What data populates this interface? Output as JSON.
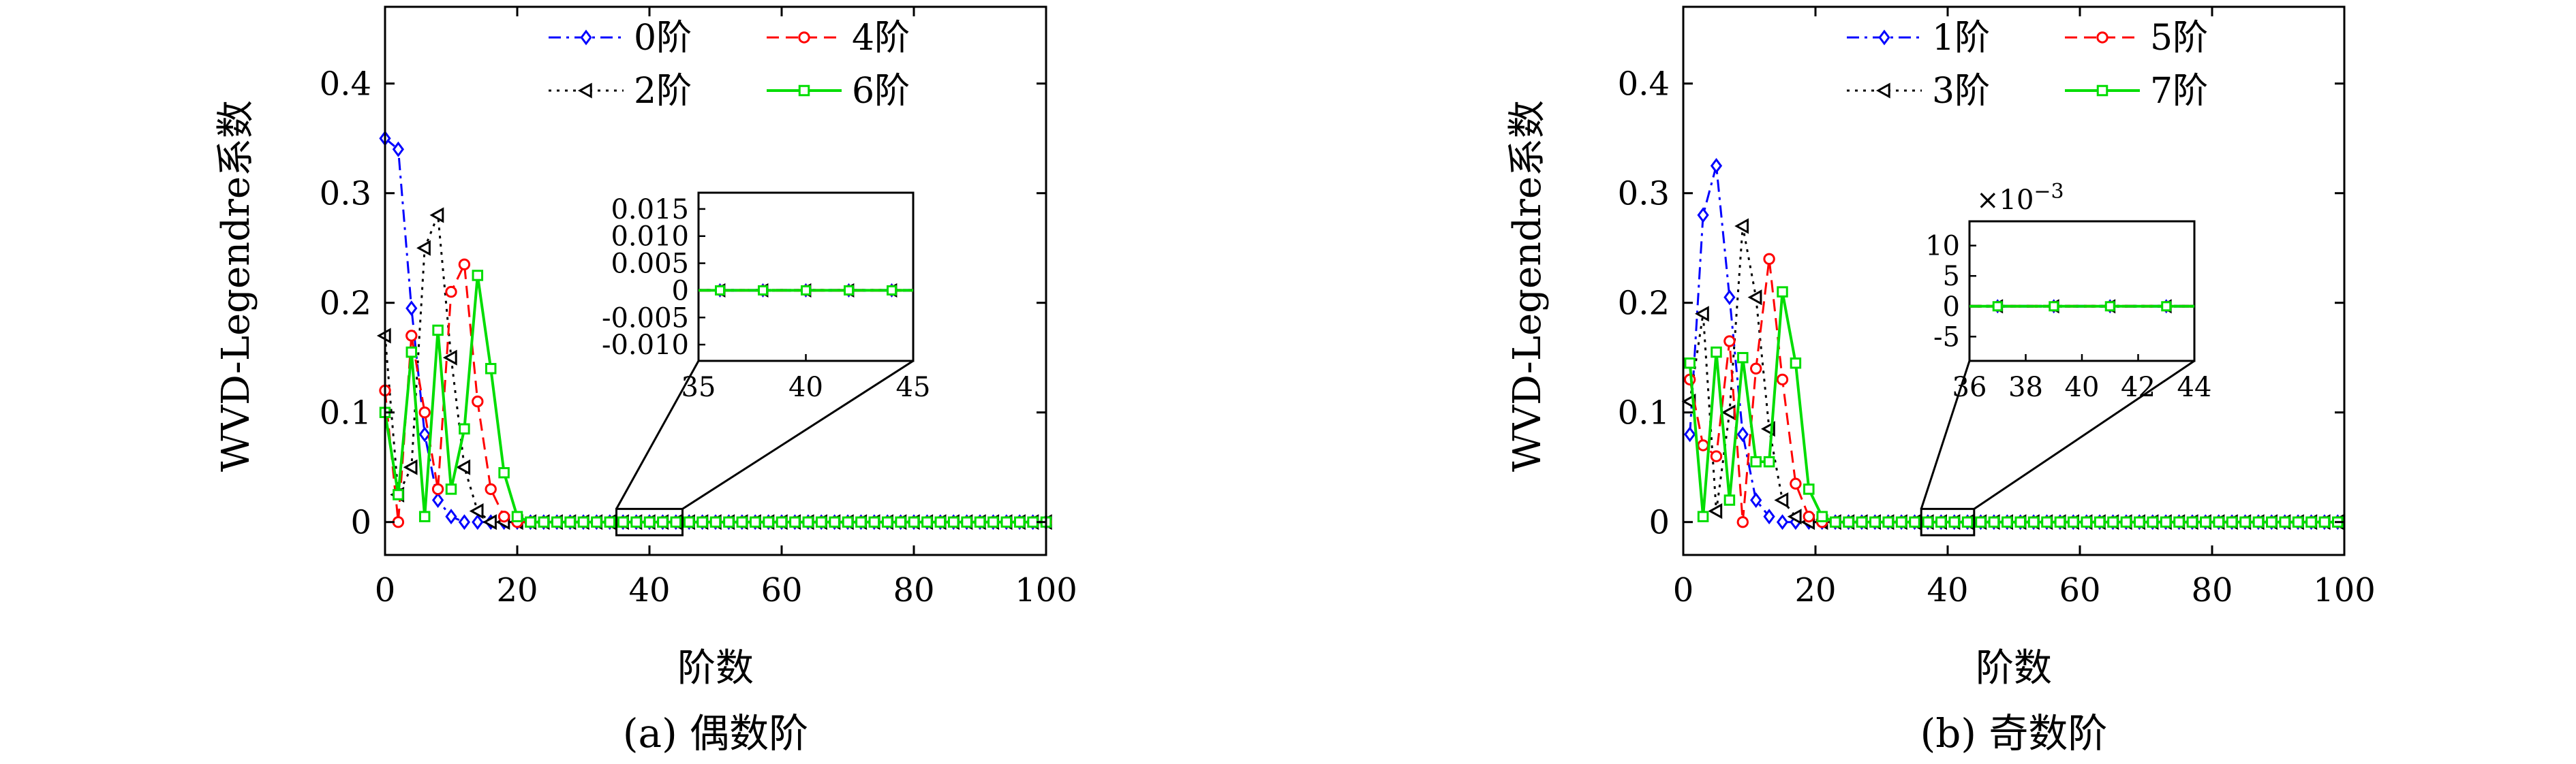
{
  "chart_data": [
    {
      "type": "line",
      "caption": "(a) 偶数阶",
      "xlabel": "阶数",
      "ylabel": "WVD-Legendre系数",
      "xlim": [
        0,
        100
      ],
      "ylim": [
        -0.03,
        0.47
      ],
      "xticks": [
        "0",
        "20",
        "40",
        "60",
        "80",
        "100"
      ],
      "yticks": [
        "0",
        "0.1",
        "0.2",
        "0.3",
        "0.4"
      ],
      "legend_placement": "top-center",
      "series": [
        {
          "name": "0阶",
          "color": "#0000ff",
          "marker": "diamond",
          "dash": "dashdot",
          "x": [
            0,
            2,
            4,
            6,
            8,
            10,
            12,
            14,
            16,
            18,
            20,
            22,
            24,
            26,
            28,
            30,
            32,
            34,
            36,
            38,
            40,
            42,
            44,
            46,
            48,
            50,
            52,
            54,
            56,
            58,
            60,
            62,
            64,
            66,
            68,
            70,
            72,
            74,
            76,
            78,
            80,
            82,
            84,
            86,
            88,
            90,
            92,
            94,
            96,
            98,
            100
          ],
          "y": [
            0.35,
            0.34,
            0.195,
            0.08,
            0.02,
            0.005,
            0,
            0,
            0,
            0,
            0,
            0,
            0,
            0,
            0,
            0,
            0,
            0,
            0,
            0,
            0,
            0,
            0,
            0,
            0,
            0,
            0,
            0,
            0,
            0,
            0,
            0,
            0,
            0,
            0,
            0,
            0,
            0,
            0,
            0,
            0,
            0,
            0,
            0,
            0,
            0,
            0,
            0,
            0,
            0,
            0
          ]
        },
        {
          "name": "2阶",
          "color": "#000000",
          "marker": "triangle-left",
          "dash": "dotted",
          "x": [
            0,
            2,
            4,
            6,
            8,
            10,
            12,
            14,
            16,
            18,
            20,
            22,
            24,
            26,
            28,
            30,
            32,
            34,
            36,
            38,
            40,
            42,
            44,
            46,
            48,
            50,
            52,
            54,
            56,
            58,
            60,
            62,
            64,
            66,
            68,
            70,
            72,
            74,
            76,
            78,
            80,
            82,
            84,
            86,
            88,
            90,
            92,
            94,
            96,
            98,
            100
          ],
          "y": [
            0.17,
            0.025,
            0.05,
            0.25,
            0.28,
            0.15,
            0.05,
            0.01,
            0,
            0,
            0,
            0,
            0,
            0,
            0,
            0,
            0,
            0,
            0,
            0,
            0,
            0,
            0,
            0,
            0,
            0,
            0,
            0,
            0,
            0,
            0,
            0,
            0,
            0,
            0,
            0,
            0,
            0,
            0,
            0,
            0,
            0,
            0,
            0,
            0,
            0,
            0,
            0,
            0,
            0,
            0
          ]
        },
        {
          "name": "4阶",
          "color": "#ff0000",
          "marker": "circle",
          "dash": "dashed",
          "x": [
            0,
            2,
            4,
            6,
            8,
            10,
            12,
            14,
            16,
            18,
            20,
            22,
            24,
            26,
            28,
            30,
            32,
            34,
            36,
            38,
            40,
            42,
            44,
            46,
            48,
            50,
            52,
            54,
            56,
            58,
            60,
            62,
            64,
            66,
            68,
            70,
            72,
            74,
            76,
            78,
            80,
            82,
            84,
            86,
            88,
            90,
            92,
            94,
            96,
            98,
            100
          ],
          "y": [
            0.12,
            0,
            0.17,
            0.1,
            0.03,
            0.21,
            0.235,
            0.11,
            0.03,
            0.005,
            0,
            0,
            0,
            0,
            0,
            0,
            0,
            0,
            0,
            0,
            0,
            0,
            0,
            0,
            0,
            0,
            0,
            0,
            0,
            0,
            0,
            0,
            0,
            0,
            0,
            0,
            0,
            0,
            0,
            0,
            0,
            0,
            0,
            0,
            0,
            0,
            0,
            0,
            0,
            0,
            0
          ]
        },
        {
          "name": "6阶",
          "color": "#00dd00",
          "marker": "square",
          "dash": "solid",
          "x": [
            0,
            2,
            4,
            6,
            8,
            10,
            12,
            14,
            16,
            18,
            20,
            22,
            24,
            26,
            28,
            30,
            32,
            34,
            36,
            38,
            40,
            42,
            44,
            46,
            48,
            50,
            52,
            54,
            56,
            58,
            60,
            62,
            64,
            66,
            68,
            70,
            72,
            74,
            76,
            78,
            80,
            82,
            84,
            86,
            88,
            90,
            92,
            94,
            96,
            98,
            100
          ],
          "y": [
            0.1,
            0.025,
            0.155,
            0.005,
            0.175,
            0.03,
            0.085,
            0.225,
            0.14,
            0.045,
            0.005,
            0,
            0,
            0,
            0,
            0,
            0,
            0,
            0,
            0,
            0,
            0,
            0,
            0,
            0,
            0,
            0,
            0,
            0,
            0,
            0,
            0,
            0,
            0,
            0,
            0,
            0,
            0,
            0,
            0,
            0,
            0,
            0,
            0,
            0,
            0,
            0,
            0,
            0,
            0,
            0
          ]
        }
      ],
      "inset": {
        "xlim": [
          35,
          45
        ],
        "ylim": [
          -0.013,
          0.018
        ],
        "xticks": [
          "35",
          "40",
          "45"
        ],
        "yticks": [
          "0.015",
          "0.010",
          "0.005",
          "0",
          "-0.005",
          "-0.010"
        ],
        "ytick_values": [
          0.015,
          0.01,
          0.005,
          0,
          -0.005,
          -0.01
        ],
        "points_x": [
          36,
          38,
          40,
          42,
          44
        ],
        "zoom_box_x": [
          35,
          45
        ],
        "zoom_box_y": [
          -0.012,
          0.012
        ]
      }
    },
    {
      "type": "line",
      "caption": "(b) 奇数阶",
      "xlabel": "阶数",
      "ylabel": "WVD-Legendre系数",
      "xlim": [
        0,
        100
      ],
      "ylim": [
        -0.03,
        0.47
      ],
      "xticks": [
        "0",
        "20",
        "40",
        "60",
        "80",
        "100"
      ],
      "yticks": [
        "0",
        "0.1",
        "0.2",
        "0.3",
        "0.4"
      ],
      "legend_placement": "top-center",
      "series": [
        {
          "name": "1阶",
          "color": "#0000ff",
          "marker": "diamond",
          "dash": "dashdot",
          "x": [
            1,
            3,
            5,
            7,
            9,
            11,
            13,
            15,
            17,
            19,
            21,
            23,
            25,
            27,
            29,
            31,
            33,
            35,
            37,
            39,
            41,
            43,
            45,
            47,
            49,
            51,
            53,
            55,
            57,
            59,
            61,
            63,
            65,
            67,
            69,
            71,
            73,
            75,
            77,
            79,
            81,
            83,
            85,
            87,
            89,
            91,
            93,
            95,
            97,
            99
          ],
          "y": [
            0.08,
            0.28,
            0.325,
            0.205,
            0.08,
            0.02,
            0.005,
            0,
            0,
            0,
            0,
            0,
            0,
            0,
            0,
            0,
            0,
            0,
            0,
            0,
            0,
            0,
            0,
            0,
            0,
            0,
            0,
            0,
            0,
            0,
            0,
            0,
            0,
            0,
            0,
            0,
            0,
            0,
            0,
            0,
            0,
            0,
            0,
            0,
            0,
            0,
            0,
            0,
            0,
            0
          ]
        },
        {
          "name": "3阶",
          "color": "#000000",
          "marker": "triangle-left",
          "dash": "dotted",
          "x": [
            1,
            3,
            5,
            7,
            9,
            11,
            13,
            15,
            17,
            19,
            21,
            23,
            25,
            27,
            29,
            31,
            33,
            35,
            37,
            39,
            41,
            43,
            45,
            47,
            49,
            51,
            53,
            55,
            57,
            59,
            61,
            63,
            65,
            67,
            69,
            71,
            73,
            75,
            77,
            79,
            81,
            83,
            85,
            87,
            89,
            91,
            93,
            95,
            97,
            99
          ],
          "y": [
            0.11,
            0.19,
            0.01,
            0.1,
            0.27,
            0.205,
            0.085,
            0.02,
            0.005,
            0,
            0,
            0,
            0,
            0,
            0,
            0,
            0,
            0,
            0,
            0,
            0,
            0,
            0,
            0,
            0,
            0,
            0,
            0,
            0,
            0,
            0,
            0,
            0,
            0,
            0,
            0,
            0,
            0,
            0,
            0,
            0,
            0,
            0,
            0,
            0,
            0,
            0,
            0,
            0,
            0
          ]
        },
        {
          "name": "5阶",
          "color": "#ff0000",
          "marker": "circle",
          "dash": "dashed",
          "x": [
            1,
            3,
            5,
            7,
            9,
            11,
            13,
            15,
            17,
            19,
            21,
            23,
            25,
            27,
            29,
            31,
            33,
            35,
            37,
            39,
            41,
            43,
            45,
            47,
            49,
            51,
            53,
            55,
            57,
            59,
            61,
            63,
            65,
            67,
            69,
            71,
            73,
            75,
            77,
            79,
            81,
            83,
            85,
            87,
            89,
            91,
            93,
            95,
            97,
            99
          ],
          "y": [
            0.13,
            0.07,
            0.06,
            0.165,
            0.0,
            0.14,
            0.24,
            0.13,
            0.035,
            0.005,
            0,
            0,
            0,
            0,
            0,
            0,
            0,
            0,
            0,
            0,
            0,
            0,
            0,
            0,
            0,
            0,
            0,
            0,
            0,
            0,
            0,
            0,
            0,
            0,
            0,
            0,
            0,
            0,
            0,
            0,
            0,
            0,
            0,
            0,
            0,
            0,
            0,
            0,
            0,
            0
          ]
        },
        {
          "name": "7阶",
          "color": "#00dd00",
          "marker": "square",
          "dash": "solid",
          "x": [
            1,
            3,
            5,
            7,
            9,
            11,
            13,
            15,
            17,
            19,
            21,
            23,
            25,
            27,
            29,
            31,
            33,
            35,
            37,
            39,
            41,
            43,
            45,
            47,
            49,
            51,
            53,
            55,
            57,
            59,
            61,
            63,
            65,
            67,
            69,
            71,
            73,
            75,
            77,
            79,
            81,
            83,
            85,
            87,
            89,
            91,
            93,
            95,
            97,
            99
          ],
          "y": [
            0.145,
            0.005,
            0.155,
            0.02,
            0.15,
            0.055,
            0.055,
            0.21,
            0.145,
            0.03,
            0.005,
            0,
            0,
            0,
            0,
            0,
            0,
            0,
            0,
            0,
            0,
            0,
            0,
            0,
            0,
            0,
            0,
            0,
            0,
            0,
            0,
            0,
            0,
            0,
            0,
            0,
            0,
            0,
            0,
            0,
            0,
            0,
            0,
            0,
            0,
            0,
            0,
            0,
            0,
            0
          ]
        }
      ],
      "inset": {
        "xlim": [
          36,
          44
        ],
        "ylim": [
          -9,
          14
        ],
        "xticks": [
          "36",
          "38",
          "40",
          "42",
          "44"
        ],
        "yticks": [
          "10",
          "5",
          "0",
          "-5"
        ],
        "ytick_values": [
          10,
          5,
          0,
          -5
        ],
        "multiplier": "×10",
        "multiplier_exp": "−3",
        "points_x": [
          37,
          39,
          41,
          43
        ],
        "zoom_box_x": [
          36,
          44
        ],
        "zoom_box_y": [
          -0.012,
          0.012
        ]
      }
    }
  ]
}
